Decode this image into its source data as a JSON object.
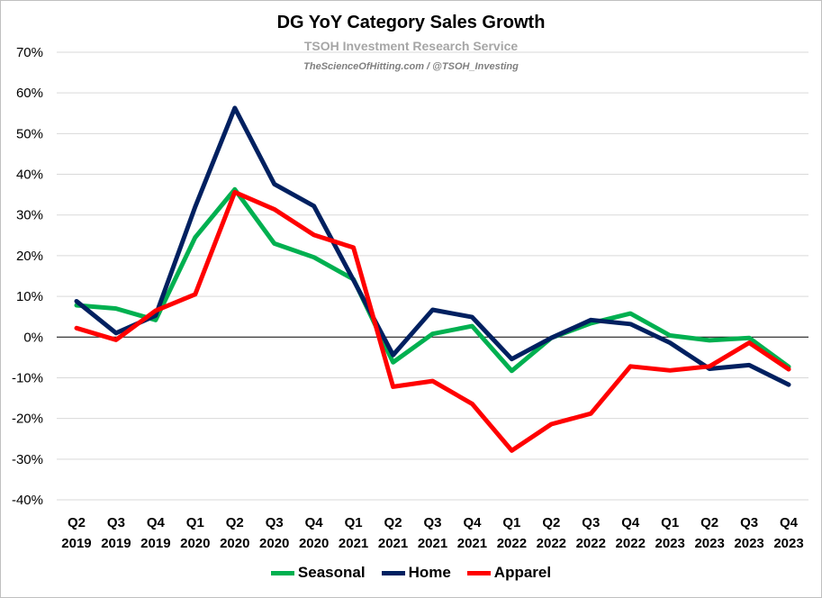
{
  "chart_data": {
    "type": "line",
    "title": "DG YoY Category Sales Growth",
    "subtitle": "TSOH Investment Research Service",
    "credit": "TheScienceOfHitting.com / @TSOH_Investing",
    "ylim": [
      -40,
      70
    ],
    "y_ticks": [
      70,
      60,
      50,
      40,
      30,
      20,
      10,
      0,
      -10,
      -20,
      -30,
      -40
    ],
    "y_tick_labels": [
      "70%",
      "60%",
      "50%",
      "40%",
      "30%",
      "20%",
      "10%",
      "0%",
      "-10%",
      "-20%",
      "-30%",
      "-40%"
    ],
    "categories": [
      [
        "Q2",
        "2019"
      ],
      [
        "Q3",
        "2019"
      ],
      [
        "Q4",
        "2019"
      ],
      [
        "Q1",
        "2020"
      ],
      [
        "Q2",
        "2020"
      ],
      [
        "Q3",
        "2020"
      ],
      [
        "Q4",
        "2020"
      ],
      [
        "Q1",
        "2021"
      ],
      [
        "Q2",
        "2021"
      ],
      [
        "Q3",
        "2021"
      ],
      [
        "Q4",
        "2021"
      ],
      [
        "Q1",
        "2022"
      ],
      [
        "Q2",
        "2022"
      ],
      [
        "Q3",
        "2022"
      ],
      [
        "Q4",
        "2022"
      ],
      [
        "Q1",
        "2023"
      ],
      [
        "Q2",
        "2023"
      ],
      [
        "Q3",
        "2023"
      ],
      [
        "Q4",
        "2023"
      ]
    ],
    "grid": true,
    "legend_position": "bottom",
    "series": [
      {
        "name": "Seasonal",
        "color": "#00b050",
        "values": [
          7.8,
          7.0,
          4.2,
          24.5,
          36.3,
          23.0,
          19.6,
          14.2,
          -6.2,
          0.8,
          2.7,
          -8.3,
          -0.2,
          3.4,
          5.8,
          0.4,
          -0.8,
          -0.2,
          -7.3
        ]
      },
      {
        "name": "Home",
        "color": "#002060",
        "values": [
          8.8,
          1.0,
          5.3,
          32.0,
          56.3,
          37.6,
          32.2,
          14.0,
          -4.4,
          6.7,
          4.9,
          -5.4,
          -0.2,
          4.2,
          3.2,
          -1.4,
          -7.8,
          -6.9,
          -11.7
        ]
      },
      {
        "name": "Apparel",
        "color": "#ff0000",
        "values": [
          2.2,
          -0.7,
          6.5,
          10.5,
          35.6,
          31.4,
          25.1,
          22.0,
          -12.2,
          -10.8,
          -16.4,
          -27.9,
          -21.4,
          -18.8,
          -7.2,
          -8.2,
          -7.2,
          -1.4,
          -7.9
        ]
      }
    ]
  }
}
